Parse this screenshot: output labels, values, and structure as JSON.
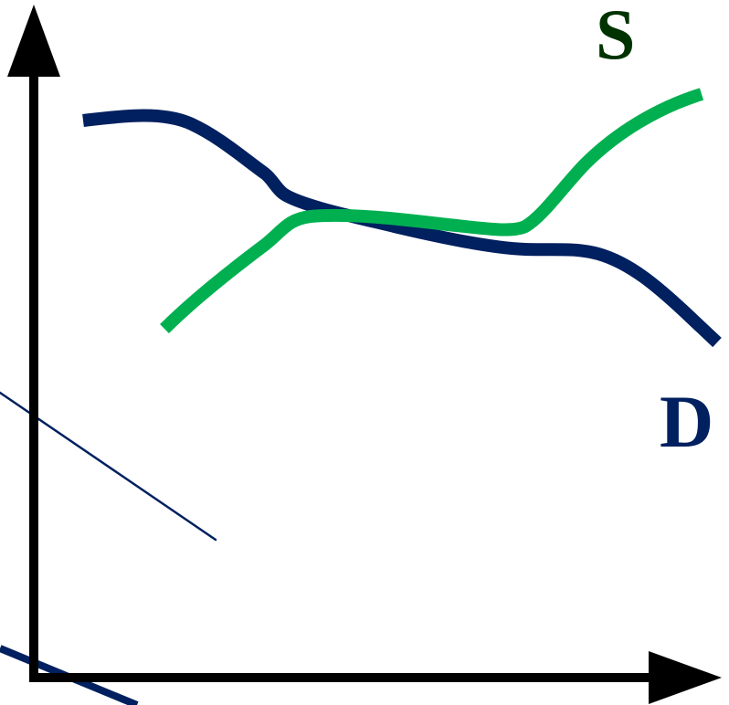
{
  "labels": {
    "supply": "S",
    "demand": "D"
  },
  "colors": {
    "axis": "#000000",
    "supply_curve": "#00b050",
    "demand_curve": "#002060",
    "supply_label": "#003300",
    "demand_label": "#002060",
    "stray_line": "#002060"
  }
}
